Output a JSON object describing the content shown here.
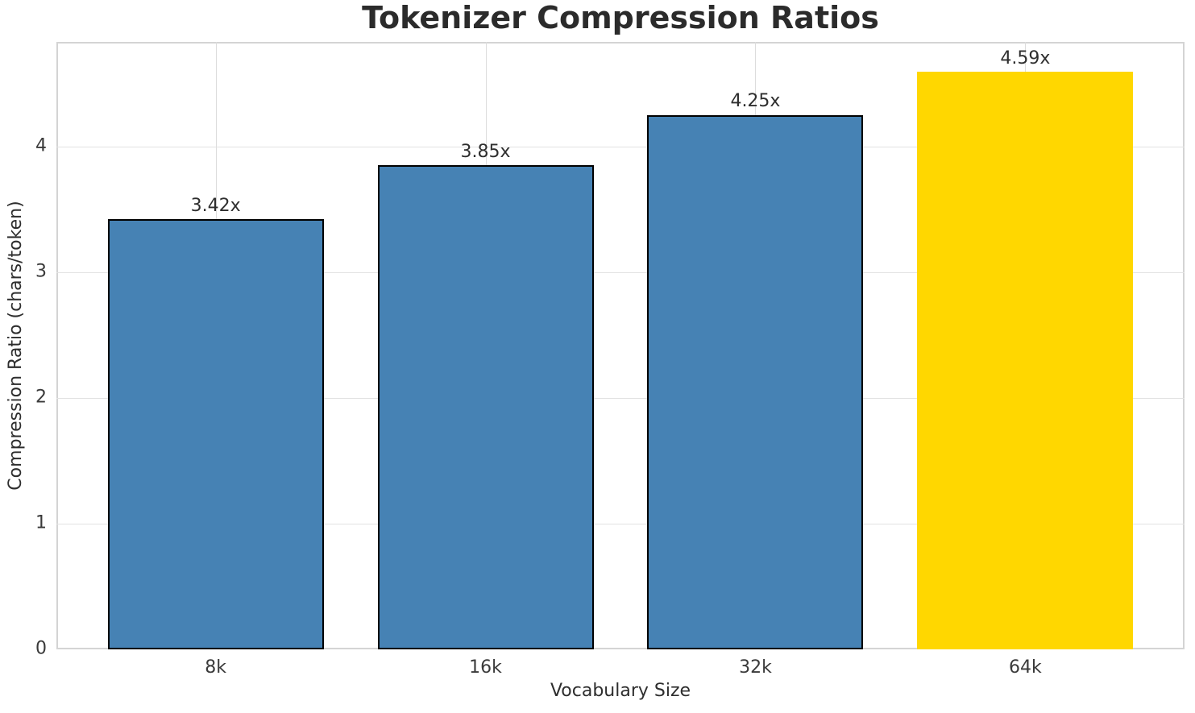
{
  "chart_data": {
    "type": "bar",
    "title": "Tokenizer Compression Ratios",
    "xlabel": "Vocabulary Size",
    "ylabel": "Compression Ratio (chars/token)",
    "categories": [
      "8k",
      "16k",
      "32k",
      "64k"
    ],
    "values": [
      3.42,
      3.85,
      4.25,
      4.59
    ],
    "bar_labels": [
      "3.42x",
      "3.85x",
      "4.25x",
      "4.59x"
    ],
    "yticks": [
      0,
      1,
      2,
      3,
      4
    ],
    "ylim": [
      0,
      4.83
    ],
    "xlim": [
      -0.59,
      3.59
    ],
    "bar_width_units": 0.8,
    "grid": true,
    "legend": false,
    "colors": {
      "bar": "#4682B4",
      "highlight": "#FFD700",
      "bar_edge": "#000000",
      "grid": "#dcdcdc",
      "spine": "#d4d4d4",
      "text": "#2e2e2e"
    },
    "highlight_index": 3
  }
}
